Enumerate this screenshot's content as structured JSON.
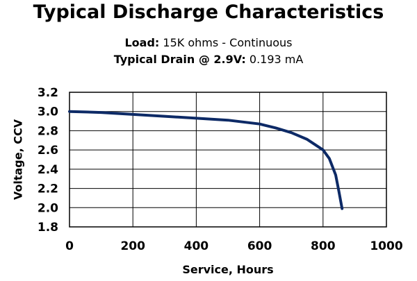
{
  "header": {
    "title": "Typical Discharge Characteristics",
    "load_label": "Load:",
    "load_value": "15K ohms - Continuous",
    "drain_label": "Typical Drain @ 2.9V:",
    "drain_value": "0.193 mA"
  },
  "colors": {
    "line": "#0d2a66",
    "grid": "#000000"
  },
  "chart_data": {
    "type": "line",
    "title": "Typical Discharge Characteristics",
    "xlabel": "Service, Hours",
    "ylabel": "Voltage, CCV",
    "xlim": [
      0,
      1000
    ],
    "ylim": [
      1.8,
      3.2
    ],
    "x_ticks": [
      0,
      200,
      400,
      600,
      800,
      1000
    ],
    "y_ticks": [
      1.8,
      2.0,
      2.2,
      2.4,
      2.6,
      2.8,
      3.0,
      3.2
    ],
    "x_tick_labels": [
      "0",
      "200",
      "400",
      "600",
      "800",
      "1000"
    ],
    "y_tick_labels": [
      "1.8",
      "2.0",
      "2.2",
      "2.4",
      "2.6",
      "2.8",
      "3.0",
      "3.2"
    ],
    "grid": true,
    "series": [
      {
        "x": [
          0,
          100,
          200,
          300,
          400,
          500,
          600,
          650,
          700,
          750,
          800,
          820,
          840,
          850,
          860
        ],
        "y": [
          3.0,
          2.99,
          2.97,
          2.95,
          2.93,
          2.91,
          2.87,
          2.83,
          2.78,
          2.71,
          2.6,
          2.51,
          2.34,
          2.17,
          1.99
        ]
      }
    ]
  }
}
